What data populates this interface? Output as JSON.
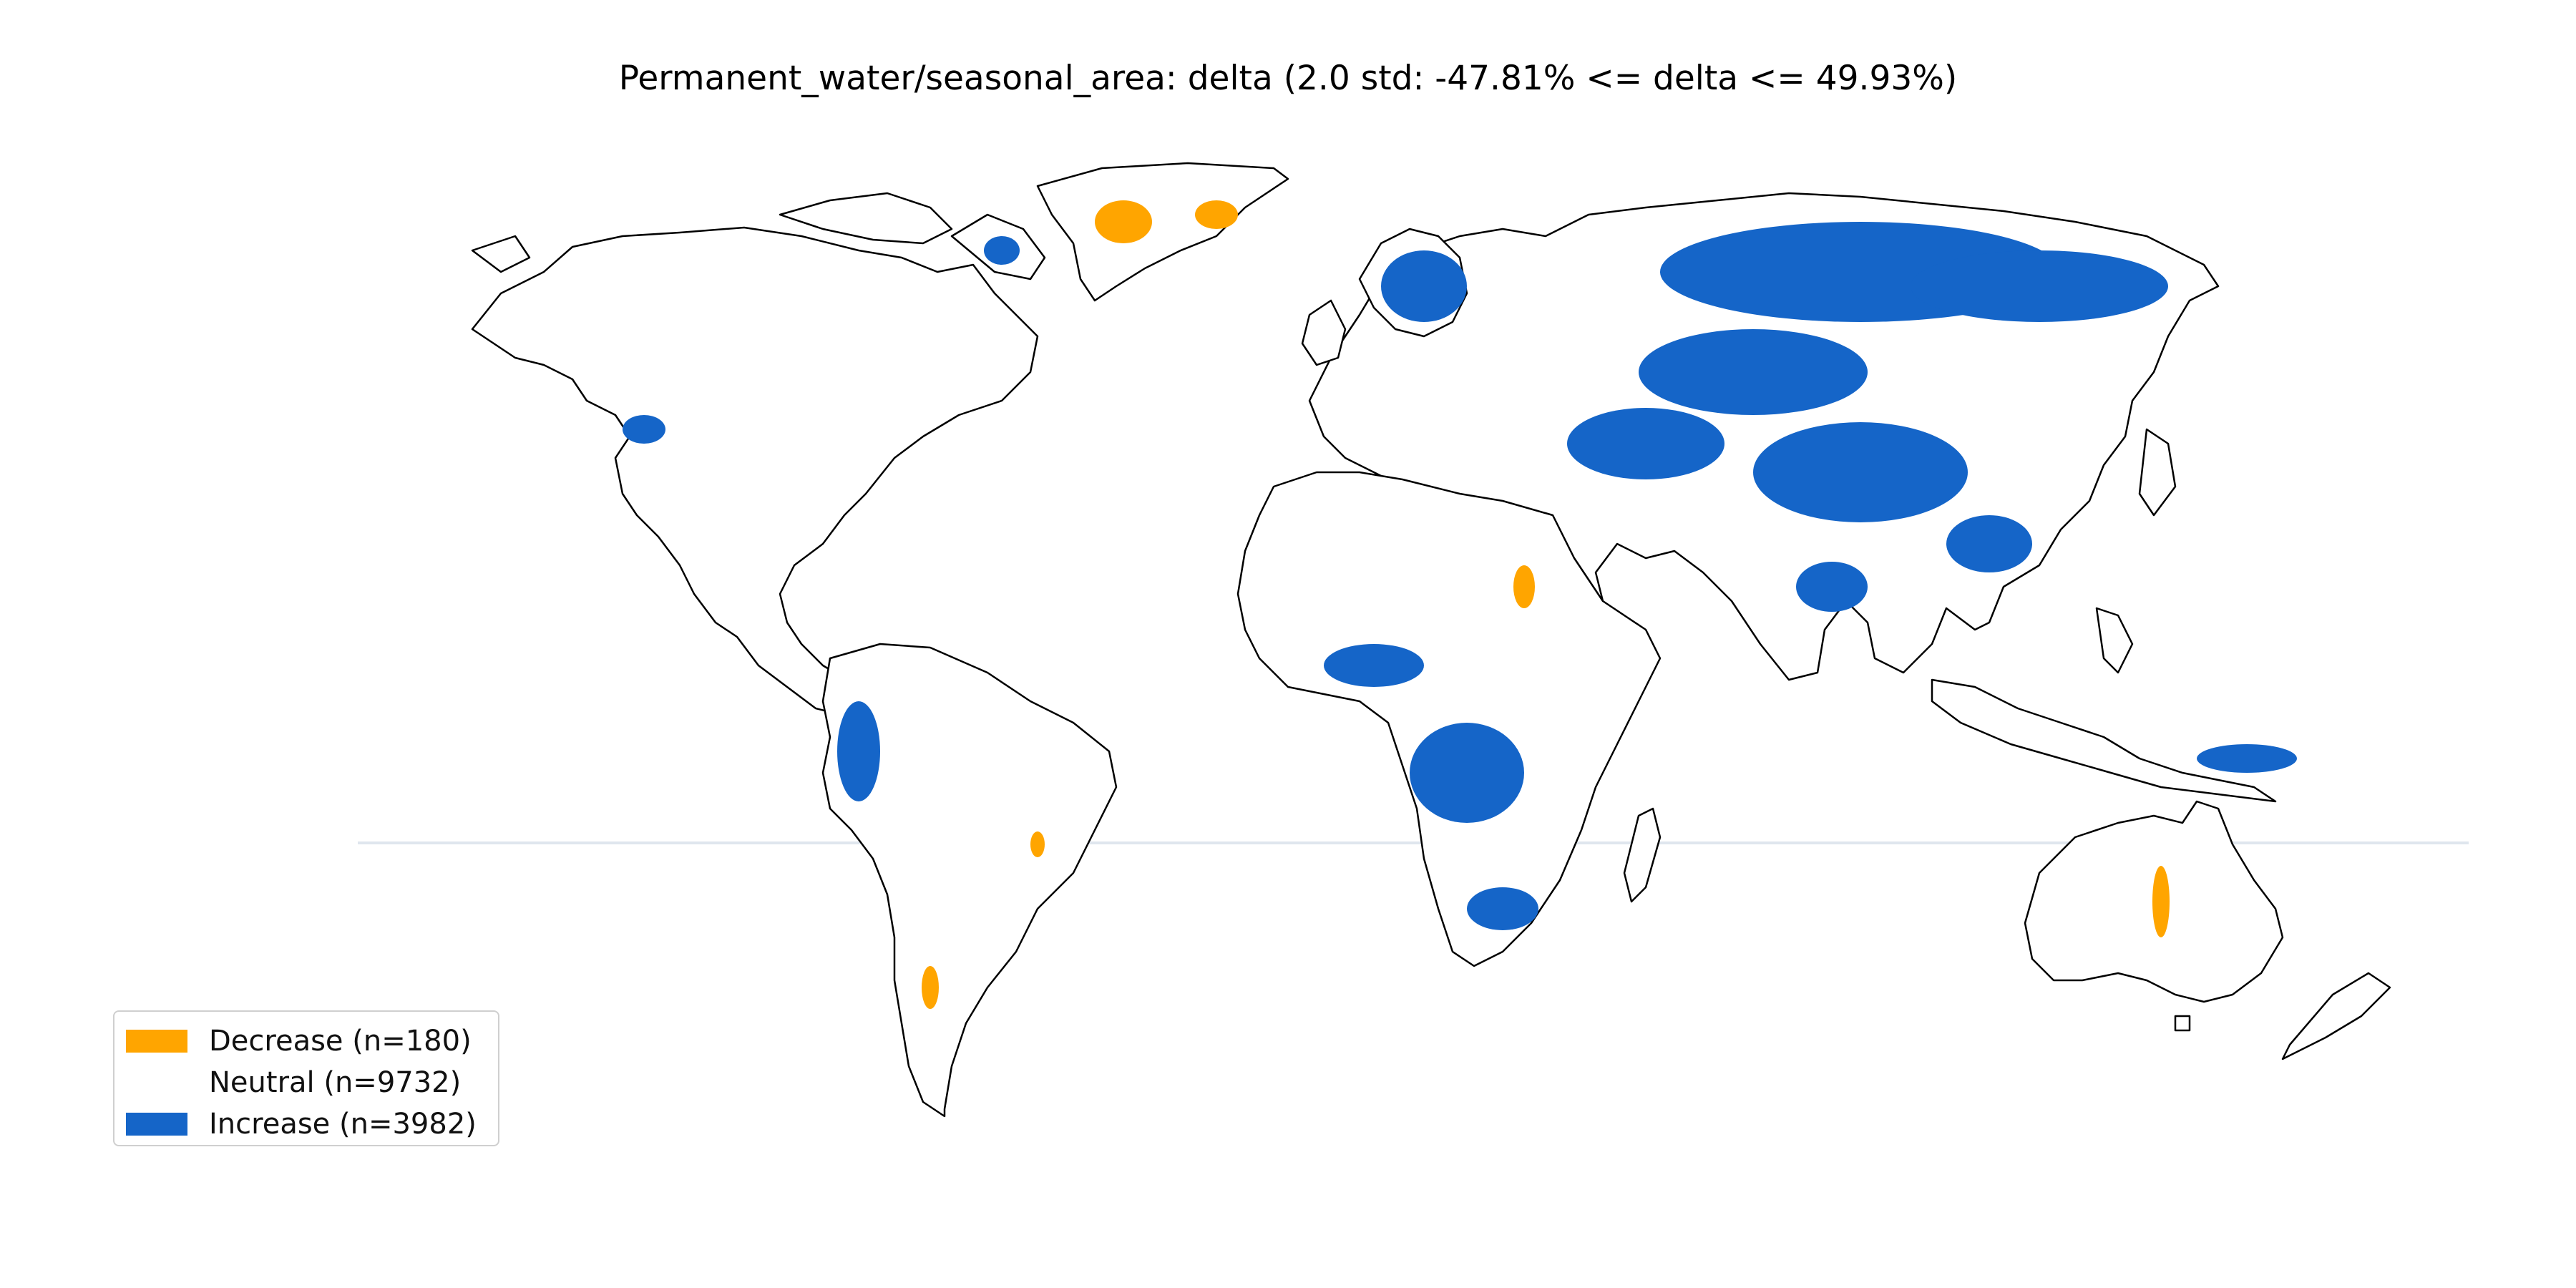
{
  "title": "Permanent_water/seasonal_area: delta (2.0 std: -47.81% <= delta <= 49.93%)",
  "colors": {
    "decrease": "#FFA500",
    "neutral": "#FFFFFF",
    "increase": "#1565C8",
    "border": "#000000"
  },
  "legend": [
    {
      "key": "decrease",
      "label": "Decrease (n=180)"
    },
    {
      "key": "neutral",
      "label": "Neutral (n=9732)"
    },
    {
      "key": "increase",
      "label": "Increase (n=3982)"
    }
  ]
}
